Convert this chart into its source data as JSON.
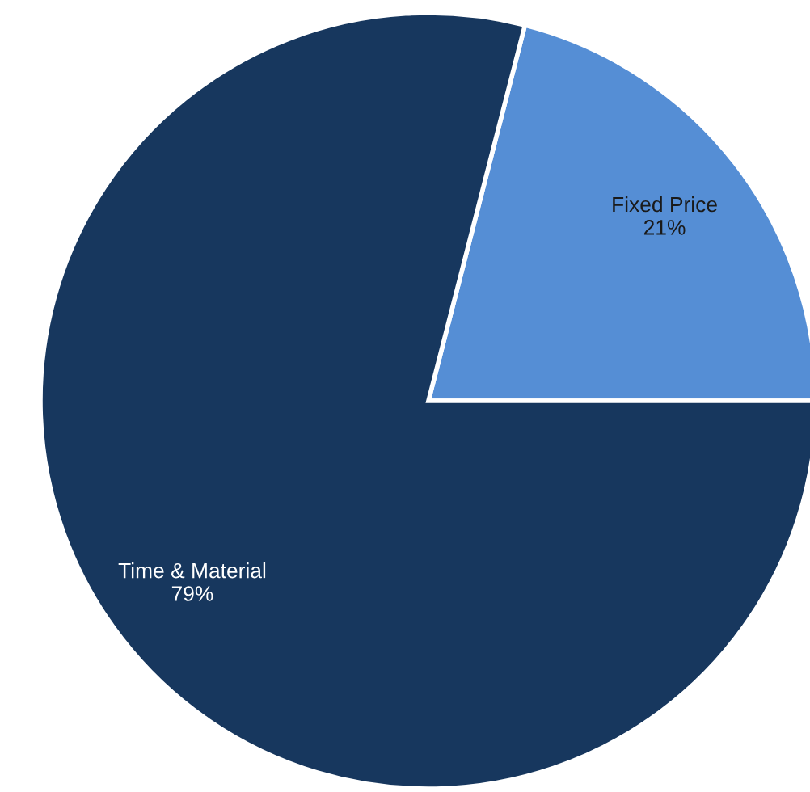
{
  "chart_data": {
    "type": "pie",
    "categories": [
      "Fixed Price",
      "Time & Material"
    ],
    "values": [
      21,
      79
    ],
    "colors": [
      "#558ed5",
      "#17375e"
    ],
    "value_labels": [
      "21%",
      "79%"
    ]
  }
}
